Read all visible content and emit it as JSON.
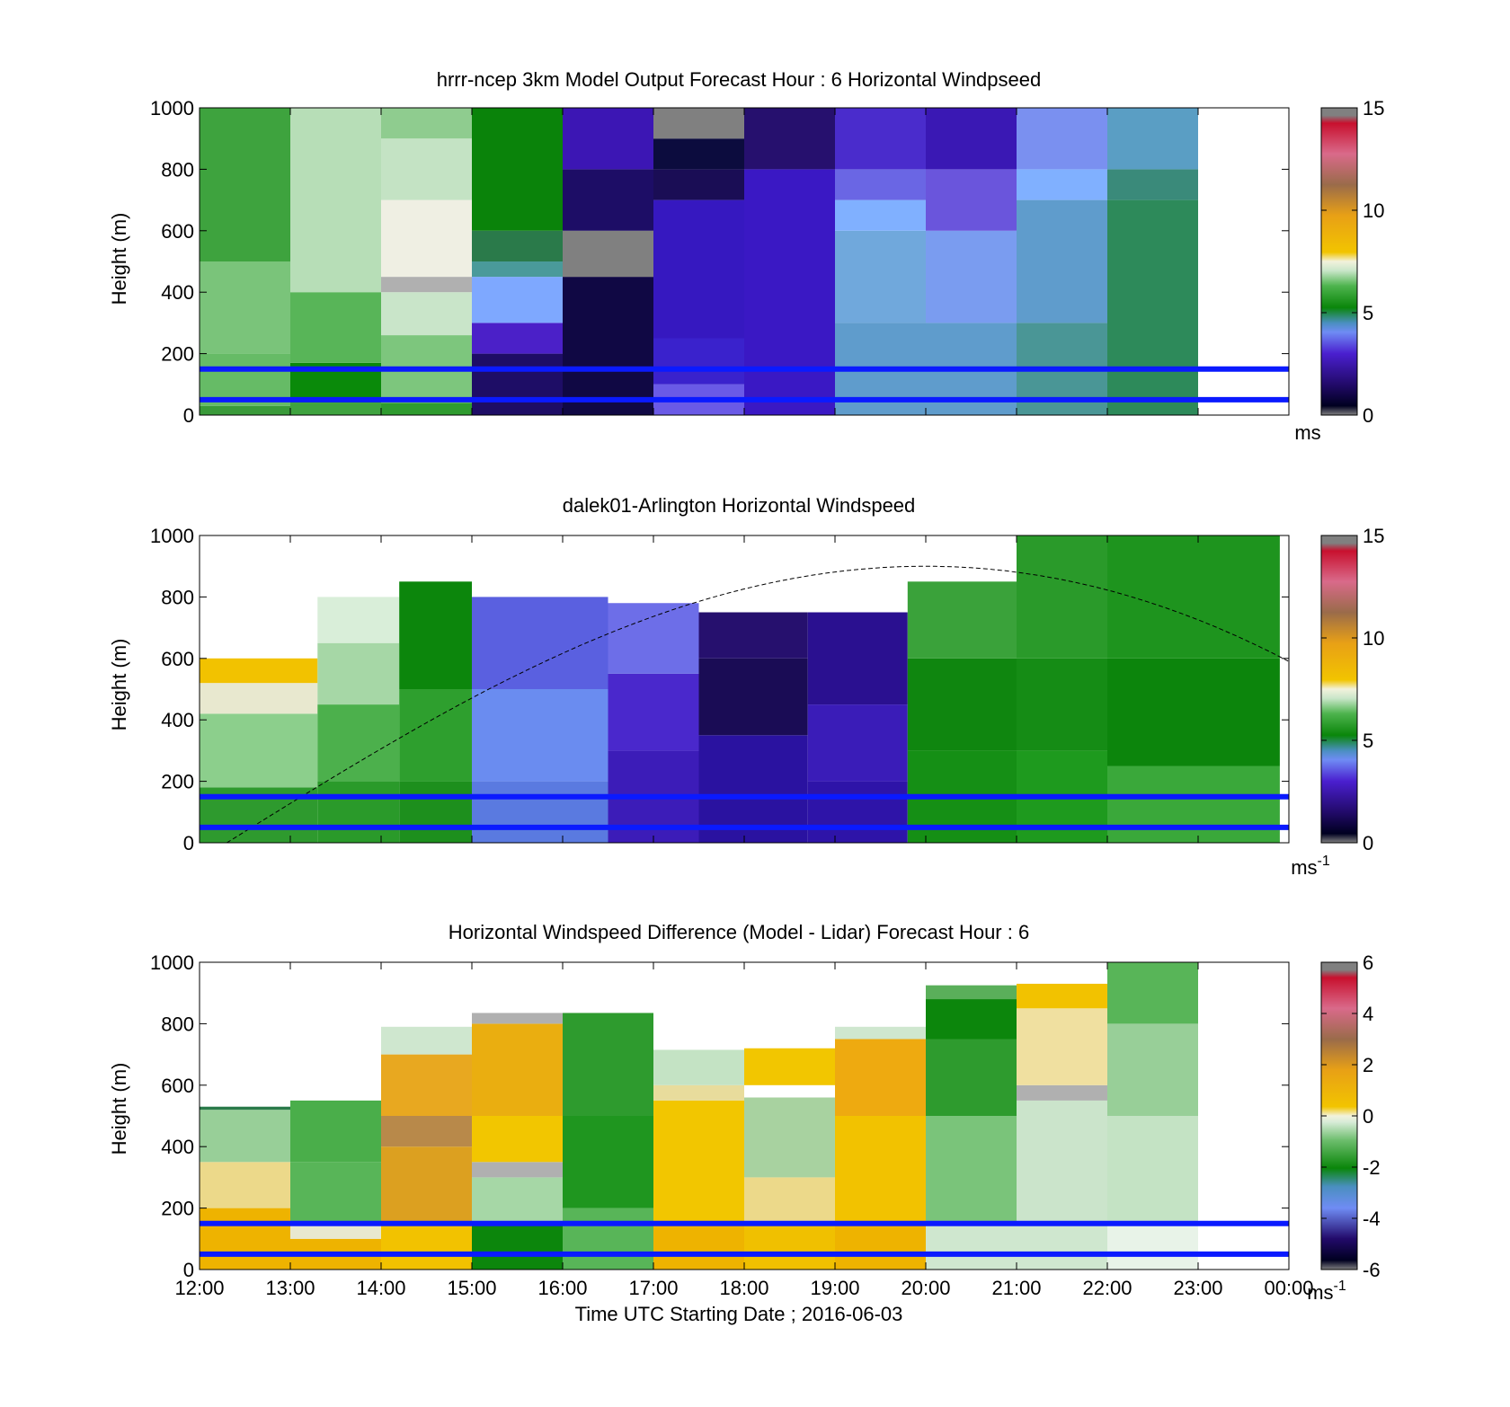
{
  "x_tick_labels": [
    "12:00",
    "13:00",
    "14:00",
    "15:00",
    "16:00",
    "17:00",
    "18:00",
    "19:00",
    "20:00",
    "21:00",
    "22:00",
    "23:00",
    "00:00"
  ],
  "x_axis_label": "Time UTC  Starting Date ; 2016-06-03",
  "chart_data": [
    {
      "type": "heatmap",
      "title": "hrrr-ncep 3km Model Output   Forecast Hour : 6 Horizontal Windpseed",
      "ylabel": "Height (m)",
      "ylim": [
        0,
        1000
      ],
      "y_ticks": [
        "0",
        "200",
        "400",
        "600",
        "800",
        "1000"
      ],
      "xlim_hours": [
        12,
        24
      ],
      "colorbar": {
        "min": 0,
        "max": 15,
        "ticks": [
          "0",
          "5",
          "10",
          "15"
        ],
        "unit": "ms"
      },
      "reference_lines_m": [
        150,
        50
      ],
      "columns": [
        {
          "t0": 12,
          "t1": 13,
          "h": [
            [
              0,
              30,
              "#3a9a3a"
            ],
            [
              30,
              200,
              "#66bb66"
            ],
            [
              200,
              500,
              "#7ac47a"
            ],
            [
              500,
              1000,
              "#3ea33e"
            ]
          ]
        },
        {
          "t0": 13,
          "t1": 14,
          "h": [
            [
              0,
              40,
              "#3fa33f"
            ],
            [
              40,
              170,
              "#0a8a0a"
            ],
            [
              170,
              400,
              "#58b558"
            ],
            [
              400,
              1000,
              "#b7deb7"
            ]
          ]
        },
        {
          "t0": 14,
          "t1": 15,
          "h": [
            [
              0,
              40,
              "#2f9b2f"
            ],
            [
              40,
              260,
              "#7dc67d"
            ],
            [
              260,
              400,
              "#c9e5c9"
            ],
            [
              400,
              450,
              "#b0b0b0"
            ],
            [
              450,
              700,
              "#efefe3"
            ],
            [
              700,
              900,
              "#c4e3c4"
            ],
            [
              900,
              1000,
              "#8fcc8f"
            ]
          ]
        },
        {
          "t0": 15,
          "t1": 16,
          "h": [
            [
              0,
              200,
              "#1e0d66"
            ],
            [
              200,
              300,
              "#4b20c8"
            ],
            [
              300,
              450,
              "#7ea8ff"
            ],
            [
              450,
              500,
              "#4a9a9a"
            ],
            [
              500,
              600,
              "#2a7a4a"
            ],
            [
              600,
              1000,
              "#0a830a"
            ]
          ]
        },
        {
          "t0": 16,
          "t1": 17,
          "h": [
            [
              0,
              450,
              "#100844"
            ],
            [
              450,
              600,
              "#808080"
            ],
            [
              600,
              800,
              "#1d0d66"
            ],
            [
              800,
              1000,
              "#3c16b4"
            ]
          ]
        },
        {
          "t0": 17,
          "t1": 18,
          "h": [
            [
              0,
              100,
              "#6a5ae6"
            ],
            [
              100,
              250,
              "#3a22cc"
            ],
            [
              250,
              700,
              "#3618c0"
            ],
            [
              700,
              800,
              "#1a0d55"
            ],
            [
              800,
              900,
              "#0c0c3e"
            ],
            [
              900,
              1000,
              "#808080"
            ]
          ]
        },
        {
          "t0": 18,
          "t1": 19,
          "h": [
            [
              0,
              800,
              "#3a18c4"
            ],
            [
              800,
              1000,
              "#26106e"
            ]
          ]
        },
        {
          "t0": 19,
          "t1": 20,
          "h": [
            [
              0,
              300,
              "#5f9ccc"
            ],
            [
              300,
              600,
              "#70a8dc"
            ],
            [
              600,
              700,
              "#80b0ff"
            ],
            [
              700,
              800,
              "#6a66e4"
            ],
            [
              800,
              1000,
              "#4a2ccc"
            ]
          ]
        },
        {
          "t0": 20,
          "t1": 21,
          "h": [
            [
              0,
              300,
              "#5f9ccc"
            ],
            [
              300,
              600,
              "#7a9cf0"
            ],
            [
              600,
              800,
              "#6a55dc"
            ],
            [
              800,
              1000,
              "#3a18b4"
            ]
          ]
        },
        {
          "t0": 21,
          "t1": 22,
          "h": [
            [
              0,
              300,
              "#4a9696"
            ],
            [
              300,
              700,
              "#5f9ccc"
            ],
            [
              700,
              800,
              "#80b0ff"
            ],
            [
              800,
              1000,
              "#7a90f0"
            ]
          ]
        },
        {
          "t0": 22,
          "t1": 23,
          "h": [
            [
              0,
              700,
              "#2d8a5a"
            ],
            [
              700,
              800,
              "#3a8a7a"
            ],
            [
              800,
              1000,
              "#5a9ec4"
            ]
          ]
        }
      ]
    },
    {
      "type": "heatmap",
      "title": "dalek01-Arlington  Horizontal Windspeed",
      "ylabel": "Height (m)",
      "ylim": [
        0,
        1000
      ],
      "y_ticks": [
        "0",
        "200",
        "400",
        "600",
        "800",
        "1000"
      ],
      "xlim_hours": [
        12,
        24
      ],
      "colorbar": {
        "min": 0,
        "max": 15,
        "ticks": [
          "0",
          "5",
          "10",
          "15"
        ],
        "unit": "ms-1"
      },
      "reference_lines_m": [
        150,
        50
      ],
      "dashed_curve": {
        "start_hour": 12.3,
        "peak_hour": 20.0,
        "peak_m": 900,
        "end_hour": 24.0,
        "end_m": 590
      },
      "columns": [
        {
          "t0": 12,
          "t1": 13.3,
          "h": [
            [
              0,
              180,
              "#2e9a2e"
            ],
            [
              180,
              420,
              "#8ccf8c"
            ],
            [
              420,
              520,
              "#e8e8cf"
            ],
            [
              520,
              600,
              "#f2c200"
            ]
          ]
        },
        {
          "t0": 13.3,
          "t1": 14.2,
          "h": [
            [
              0,
              200,
              "#2a9a2a"
            ],
            [
              200,
              450,
              "#4cb04c"
            ],
            [
              450,
              650,
              "#a6d7a6"
            ],
            [
              650,
              800,
              "#d9eed9"
            ]
          ]
        },
        {
          "t0": 14.2,
          "t1": 15,
          "h": [
            [
              0,
              200,
              "#1d8f1d"
            ],
            [
              200,
              500,
              "#2e9f2e"
            ],
            [
              500,
              850,
              "#0c860c"
            ]
          ]
        },
        {
          "t0": 15,
          "t1": 16.5,
          "h": [
            [
              0,
              200,
              "#5a7ae0"
            ],
            [
              200,
              500,
              "#6a8cf0"
            ],
            [
              500,
              800,
              "#5a60e0"
            ]
          ]
        },
        {
          "t0": 16.5,
          "t1": 17.5,
          "h": [
            [
              0,
              300,
              "#3c1cb8"
            ],
            [
              300,
              550,
              "#4a28cc"
            ],
            [
              550,
              780,
              "#6d6ee8"
            ]
          ]
        },
        {
          "t0": 17.5,
          "t1": 18.7,
          "h": [
            [
              0,
              350,
              "#2a12a0"
            ],
            [
              350,
              600,
              "#1a0c55"
            ],
            [
              600,
              750,
              "#26106e"
            ]
          ]
        },
        {
          "t0": 18.7,
          "t1": 19.8,
          "h": [
            [
              0,
              200,
              "#2e14a8"
            ],
            [
              200,
              450,
              "#3a1cb8"
            ],
            [
              450,
              750,
              "#2a1090"
            ]
          ]
        },
        {
          "t0": 19.8,
          "t1": 21,
          "h": [
            [
              0,
              300,
              "#158f15"
            ],
            [
              300,
              600,
              "#0f860f"
            ],
            [
              600,
              850,
              "#3aa23a"
            ]
          ]
        },
        {
          "t0": 21,
          "t1": 22,
          "h": [
            [
              0,
              300,
              "#1e9a1e"
            ],
            [
              300,
              600,
              "#158c15"
            ],
            [
              600,
              1000,
              "#2a9a2a"
            ]
          ]
        },
        {
          "t0": 22,
          "t1": 23.9,
          "h": [
            [
              0,
              250,
              "#3aa83a"
            ],
            [
              250,
              600,
              "#0c850c"
            ],
            [
              600,
              1000,
              "#1e941e"
            ]
          ]
        }
      ]
    },
    {
      "type": "heatmap",
      "title": "Horizontal Windspeed Difference (Model - Lidar) Forecast Hour : 6",
      "ylabel": "Height (m)",
      "ylim": [
        0,
        1000
      ],
      "y_ticks": [
        "0",
        "200",
        "400",
        "600",
        "800",
        "1000"
      ],
      "xlim_hours": [
        12,
        24
      ],
      "colorbar": {
        "min": -6,
        "max": 6,
        "ticks": [
          "-6",
          "-4",
          "-2",
          "0",
          "2",
          "4",
          "6"
        ],
        "unit": "ms-1"
      },
      "reference_lines_m": [
        150,
        50
      ],
      "columns": [
        {
          "t0": 12,
          "t1": 13,
          "h": [
            [
              0,
              200,
              "#eeb300"
            ],
            [
              200,
              350,
              "#ecd98a"
            ],
            [
              350,
              520,
              "#98cf98"
            ],
            [
              520,
              530,
              "#2a7a4a"
            ]
          ]
        },
        {
          "t0": 13,
          "t1": 14,
          "h": [
            [
              0,
              100,
              "#eeb300"
            ],
            [
              100,
              150,
              "#e8e8cf"
            ],
            [
              150,
              350,
              "#58b558"
            ],
            [
              350,
              550,
              "#4aae4a"
            ]
          ]
        },
        {
          "t0": 14,
          "t1": 15,
          "h": [
            [
              0,
              150,
              "#f2c200"
            ],
            [
              150,
              400,
              "#dca020"
            ],
            [
              400,
              500,
              "#b8894a"
            ],
            [
              500,
              700,
              "#e8a820"
            ],
            [
              700,
              790,
              "#cfe7cf"
            ]
          ]
        },
        {
          "t0": 15,
          "t1": 16,
          "h": [
            [
              0,
              150,
              "#0c860c"
            ],
            [
              150,
              300,
              "#a6d7a6"
            ],
            [
              300,
              350,
              "#b0b0b0"
            ],
            [
              350,
              500,
              "#f2c600"
            ],
            [
              500,
              800,
              "#eaae10"
            ],
            [
              800,
              835,
              "#b0b0b0"
            ]
          ]
        },
        {
          "t0": 16,
          "t1": 17,
          "h": [
            [
              0,
              200,
              "#58b558"
            ],
            [
              200,
              500,
              "#1f961f"
            ],
            [
              500,
              835,
              "#2e9b2e"
            ]
          ]
        },
        {
          "t0": 17,
          "t1": 18,
          "h": [
            [
              0,
              150,
              "#eeb300"
            ],
            [
              150,
              550,
              "#f2c600"
            ],
            [
              550,
              600,
              "#e8dc9c"
            ],
            [
              600,
              715,
              "#c4e3c4"
            ]
          ]
        },
        {
          "t0": 18,
          "t1": 19,
          "h": [
            [
              0,
              150,
              "#f0c000"
            ],
            [
              150,
              300,
              "#ecd98a"
            ],
            [
              300,
              560,
              "#a8d2a0"
            ],
            [
              560,
              600,
              "#ffffff"
            ],
            [
              600,
              720,
              "#f2c600"
            ]
          ]
        },
        {
          "t0": 19,
          "t1": 20,
          "h": [
            [
              0,
              150,
              "#eeb300"
            ],
            [
              150,
              500,
              "#f2c200"
            ],
            [
              500,
              750,
              "#eeaa10"
            ],
            [
              750,
              790,
              "#cfe7cf"
            ]
          ]
        },
        {
          "t0": 20,
          "t1": 21,
          "h": [
            [
              0,
              150,
              "#cfe7cf"
            ],
            [
              150,
              500,
              "#7ac47a"
            ],
            [
              500,
              750,
              "#2e9b2e"
            ],
            [
              750,
              880,
              "#0c860c"
            ],
            [
              880,
              925,
              "#5aaf5a"
            ]
          ]
        },
        {
          "t0": 21,
          "t1": 22,
          "h": [
            [
              0,
              150,
              "#cfe7cf"
            ],
            [
              150,
              550,
              "#cbe4cb"
            ],
            [
              550,
              600,
              "#b0b0b0"
            ],
            [
              600,
              850,
              "#f0e0a0"
            ],
            [
              850,
              930,
              "#f2c200"
            ]
          ]
        },
        {
          "t0": 22,
          "t1": 23,
          "h": [
            [
              0,
              150,
              "#e8f3e8"
            ],
            [
              150,
              500,
              "#c4e3c4"
            ],
            [
              500,
              800,
              "#98cf98"
            ],
            [
              800,
              1000,
              "#58b558"
            ]
          ]
        }
      ]
    }
  ]
}
